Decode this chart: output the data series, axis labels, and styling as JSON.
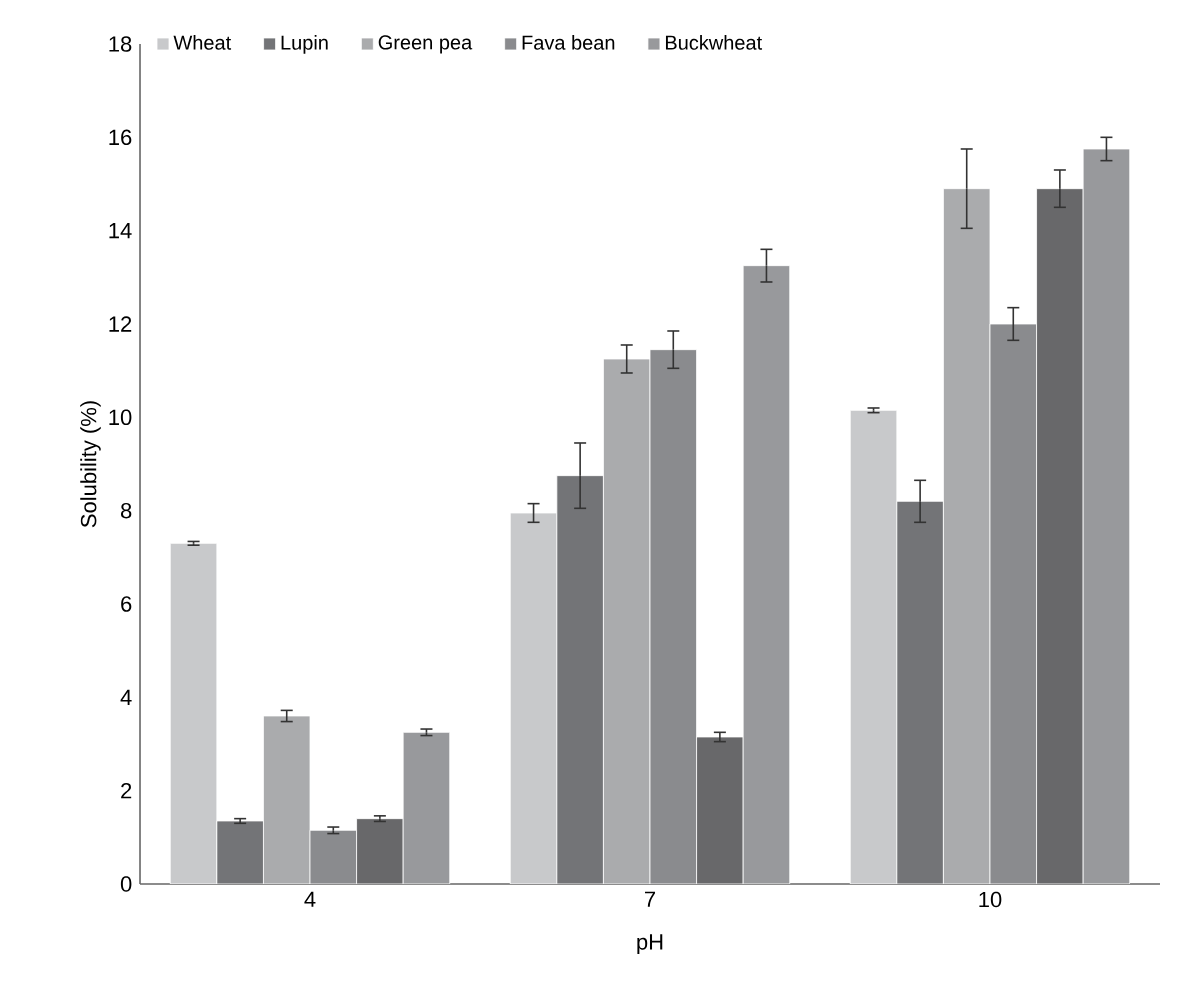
{
  "chart_data": {
    "type": "bar",
    "xlabel": "pH",
    "ylabel": "Solubility (%)",
    "categories": [
      "4",
      "7",
      "10"
    ],
    "ylim": [
      0,
      18
    ],
    "yticks": [
      0,
      2,
      4,
      6,
      8,
      10,
      12,
      14,
      16,
      18
    ],
    "legend": "top",
    "grid": false,
    "series": [
      {
        "name": "Wheat",
        "color": "#c8c9cb",
        "values": [
          7.3,
          7.95,
          10.15
        ],
        "errors": [
          0.04,
          0.2,
          0.05
        ]
      },
      {
        "name": "Lupin",
        "color": "#737477",
        "values": [
          1.35,
          8.75,
          8.2
        ],
        "errors": [
          0.05,
          0.7,
          0.45
        ]
      },
      {
        "name": "Green pea",
        "color": "#aaabad",
        "values": [
          3.6,
          11.25,
          14.9
        ],
        "errors": [
          0.12,
          0.3,
          0.85
        ]
      },
      {
        "name": "Fava bean",
        "color": "#8a8b8e",
        "values": [
          1.15,
          11.45,
          12.0
        ],
        "errors": [
          0.07,
          0.4,
          0.35
        ]
      },
      {
        "color": "#68686a",
        "values": [
          1.4,
          3.15,
          14.9
        ],
        "errors": [
          0.06,
          0.1,
          0.4
        ]
      },
      {
        "name": "Buckwheat",
        "color": "#98999c",
        "values": [
          3.25,
          13.25,
          15.75
        ],
        "errors": [
          0.07,
          0.35,
          0.25
        ]
      }
    ]
  }
}
